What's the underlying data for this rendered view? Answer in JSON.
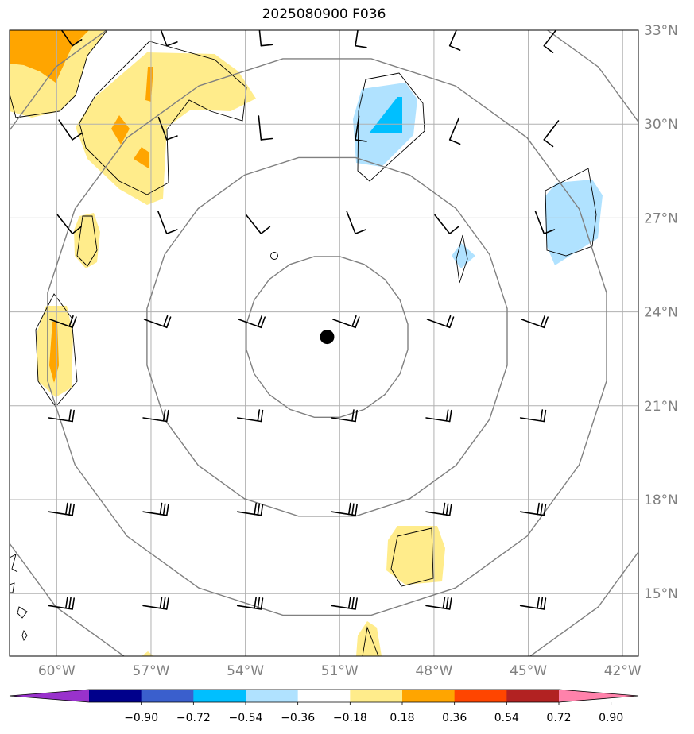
{
  "title": "2025080900 F036",
  "map": {
    "lon_range": [
      -61.5,
      -41.5
    ],
    "lat_range": [
      13.0,
      33.0
    ],
    "lon_ticks": [
      {
        "value": -60,
        "label": "60°W"
      },
      {
        "value": -57,
        "label": "57°W"
      },
      {
        "value": -54,
        "label": "54°W"
      },
      {
        "value": -51,
        "label": "51°W"
      },
      {
        "value": -48,
        "label": "48°W"
      },
      {
        "value": -45,
        "label": "45°W"
      },
      {
        "value": -42,
        "label": "42°W"
      }
    ],
    "lat_ticks": [
      {
        "value": 15,
        "label": "15°N"
      },
      {
        "value": 18,
        "label": "18°N"
      },
      {
        "value": 21,
        "label": "21°N"
      },
      {
        "value": 24,
        "label": "24°N"
      },
      {
        "value": 27,
        "label": "27°N"
      },
      {
        "value": 30,
        "label": "30°N"
      },
      {
        "value": 33,
        "label": "33°N"
      }
    ],
    "center": {
      "lon": -51.4,
      "lat": 23.2
    },
    "range_rings_deg": [
      2.6,
      5.8,
      9.0,
      12.2
    ],
    "barb_lons": [
      -59.5,
      -56.5,
      -53.5,
      -50.5,
      -47.5,
      -44.5
    ],
    "barb_lats": [
      32.5,
      29.5,
      26.5,
      23.5,
      20.5,
      17.5,
      14.5
    ]
  },
  "colorbar": {
    "colors": [
      "#9932cc",
      "#00008b",
      "#3a5fcd",
      "#00bfff",
      "#b0e2ff",
      "#ffffff",
      "#ffec8b",
      "#ffa500",
      "#ff4500",
      "#b22222",
      "#ff82ab"
    ],
    "labels": [
      "−0.90",
      "−0.72",
      "−0.54",
      "−0.36",
      "−0.18",
      "0.18",
      "0.36",
      "0.54",
      "0.72",
      "0.90"
    ]
  }
}
